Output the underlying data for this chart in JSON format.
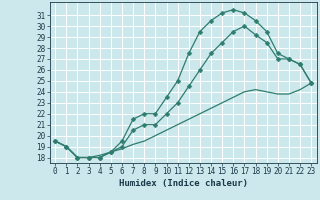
{
  "title": "",
  "xlabel": "Humidex (Indice chaleur)",
  "bg_color": "#cce8ec",
  "grid_color": "#ffffff",
  "line_color": "#2e7d6e",
  "xlim": [
    -0.5,
    23.5
  ],
  "ylim": [
    17.5,
    32.2
  ],
  "yticks": [
    18,
    19,
    20,
    21,
    22,
    23,
    24,
    25,
    26,
    27,
    28,
    29,
    30,
    31
  ],
  "xticks": [
    0,
    1,
    2,
    3,
    4,
    5,
    6,
    7,
    8,
    9,
    10,
    11,
    12,
    13,
    14,
    15,
    16,
    17,
    18,
    19,
    20,
    21,
    22,
    23
  ],
  "line1_x": [
    0,
    1,
    2,
    3,
    4,
    5,
    6,
    7,
    8,
    9,
    10,
    11,
    12,
    13,
    14,
    15,
    16,
    17,
    18,
    19,
    20,
    21,
    22,
    23
  ],
  "line1_y": [
    19.5,
    19.0,
    18.0,
    18.0,
    18.0,
    18.5,
    19.5,
    21.5,
    22.0,
    22.0,
    23.5,
    25.0,
    27.5,
    29.5,
    30.5,
    31.2,
    31.5,
    31.2,
    30.5,
    29.5,
    27.5,
    27.0,
    26.5,
    24.8
  ],
  "line2_x": [
    0,
    1,
    2,
    3,
    4,
    5,
    6,
    7,
    8,
    9,
    10,
    11,
    12,
    13,
    14,
    15,
    16,
    17,
    18,
    19,
    20,
    21,
    22,
    23
  ],
  "line2_y": [
    19.5,
    19.0,
    18.0,
    18.0,
    18.0,
    18.5,
    19.0,
    20.5,
    21.0,
    21.0,
    22.0,
    23.0,
    24.5,
    26.0,
    27.5,
    28.5,
    29.5,
    30.0,
    29.2,
    28.5,
    27.0,
    27.0,
    26.5,
    24.8
  ],
  "line3_x": [
    0,
    1,
    2,
    3,
    4,
    5,
    6,
    7,
    8,
    9,
    10,
    11,
    12,
    13,
    14,
    15,
    16,
    17,
    18,
    19,
    20,
    21,
    22,
    23
  ],
  "line3_y": [
    19.5,
    19.0,
    18.0,
    18.0,
    18.2,
    18.5,
    18.8,
    19.2,
    19.5,
    20.0,
    20.5,
    21.0,
    21.5,
    22.0,
    22.5,
    23.0,
    23.5,
    24.0,
    24.2,
    24.0,
    23.8,
    23.8,
    24.2,
    24.8
  ]
}
